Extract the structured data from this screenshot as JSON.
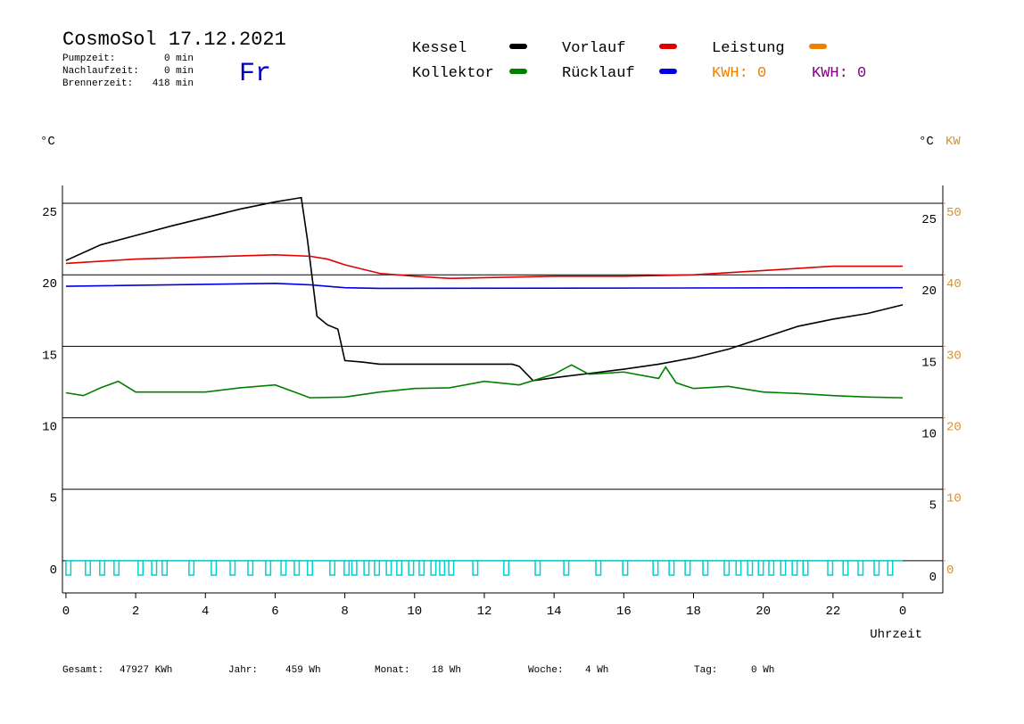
{
  "chart_data": {
    "type": "line",
    "title": "CosmoSol 17.12.2021",
    "day": "Fr",
    "info": [
      {
        "label": "Pumpzeit:",
        "value": "0 min"
      },
      {
        "label": "Nachlaufzeit:",
        "value": "0 min"
      },
      {
        "label": "Brennerzeit:",
        "value": "418 min"
      }
    ],
    "y_unit": "°C",
    "y_unit_right": "°C",
    "y2_unit": "KW",
    "x_label": "Uhrzeit",
    "kwh_labels": [
      {
        "text": "KWH: 0",
        "color": "#f08000"
      },
      {
        "text": "KWH: 0",
        "color": "#800080"
      }
    ],
    "footer": [
      {
        "label": "Gesamt:",
        "value": "47927 KWh"
      },
      {
        "label": "Jahr:",
        "value": "459 Wh"
      },
      {
        "label": "Monat:",
        "value": "18 Wh"
      },
      {
        "label": "Woche:",
        "value": "4 Wh"
      },
      {
        "label": "Tag:",
        "value": "0 Wh"
      }
    ],
    "xlim": [
      -0.1,
      25.15
    ],
    "xticks": [
      0,
      2,
      4,
      6,
      8,
      10,
      12,
      14,
      16,
      18,
      20,
      22,
      {
        "value": 24,
        "label": "0"
      }
    ],
    "ylim": [
      -2.25,
      26.25
    ],
    "yticks": [
      0,
      5,
      10,
      15,
      20,
      25
    ],
    "y2lim": [
      -4.5,
      52.5
    ],
    "y2ticks": [
      0,
      10,
      20,
      30,
      40,
      50
    ],
    "grid": true,
    "series": [
      {
        "name": "Kessel",
        "color": "#000000",
        "x": [
          0,
          1,
          2,
          3,
          4,
          5,
          6,
          6.5,
          6.75,
          6.93,
          7.2,
          7.5,
          7.8,
          8.0,
          8.5,
          9,
          12.8,
          13,
          13.4,
          14,
          15,
          16,
          17,
          18,
          19,
          20,
          21,
          22,
          23,
          24
        ],
        "values": [
          21.0,
          22.1,
          22.75,
          23.4,
          24.0,
          24.6,
          25.1,
          25.3,
          25.4,
          22.4,
          17.1,
          16.5,
          16.2,
          14.0,
          13.9,
          13.75,
          13.75,
          13.6,
          12.6,
          12.8,
          13.1,
          13.4,
          13.75,
          14.2,
          14.8,
          15.6,
          16.4,
          16.9,
          17.3,
          17.9
        ]
      },
      {
        "name": "Kollektor",
        "color": "#008000",
        "x": [
          0,
          0.5,
          1,
          1.5,
          2,
          4,
          5,
          6,
          7,
          8,
          9,
          10,
          11,
          12,
          13,
          14,
          14.5,
          15,
          16,
          17,
          17.2,
          17.5,
          18,
          19,
          20,
          21,
          22,
          23,
          24
        ],
        "values": [
          11.75,
          11.55,
          12.1,
          12.55,
          11.8,
          11.8,
          12.1,
          12.3,
          11.4,
          11.45,
          11.8,
          12.05,
          12.1,
          12.55,
          12.3,
          13.05,
          13.7,
          13.05,
          13.2,
          12.75,
          13.55,
          12.45,
          12.05,
          12.2,
          11.8,
          11.7,
          11.55,
          11.45,
          11.4
        ]
      },
      {
        "name": "Vorlauf",
        "color": "#e00000",
        "x": [
          0,
          2,
          4,
          6,
          7,
          7.5,
          8,
          9,
          10,
          11,
          12,
          14,
          16,
          18,
          20,
          22,
          24
        ],
        "values": [
          20.8,
          21.1,
          21.25,
          21.4,
          21.3,
          21.1,
          20.7,
          20.1,
          19.9,
          19.75,
          19.8,
          19.9,
          19.9,
          20.0,
          20.3,
          20.6,
          20.6
        ]
      },
      {
        "name": "Rücklauf",
        "color": "#0000e0",
        "x": [
          0,
          6,
          7,
          8,
          9,
          24
        ],
        "values": [
          19.2,
          19.4,
          19.3,
          19.1,
          19.05,
          19.1
        ]
      },
      {
        "name": "Leistung",
        "color": "#f08000",
        "axis": "y2"
      }
    ],
    "pump": {
      "color": "#00d0d0",
      "level": 0,
      "low": -1,
      "width": 0.14,
      "starts": [
        0.0,
        0.56,
        0.97,
        1.38,
        2.07,
        2.46,
        2.76,
        3.53,
        4.17,
        4.71,
        5.22,
        5.73,
        6.17,
        6.55,
        6.93,
        7.57,
        7.98,
        8.2,
        8.55,
        8.85,
        9.19,
        9.49,
        9.83,
        10.13,
        10.47,
        10.72,
        10.98,
        11.67,
        12.56,
        13.46,
        14.28,
        15.2,
        15.97,
        16.84,
        17.3,
        17.76,
        18.27,
        18.88,
        19.22,
        19.55,
        19.86,
        20.16,
        20.5,
        20.83,
        21.14,
        21.85,
        22.29,
        22.72,
        23.18,
        23.57
      ]
    }
  }
}
